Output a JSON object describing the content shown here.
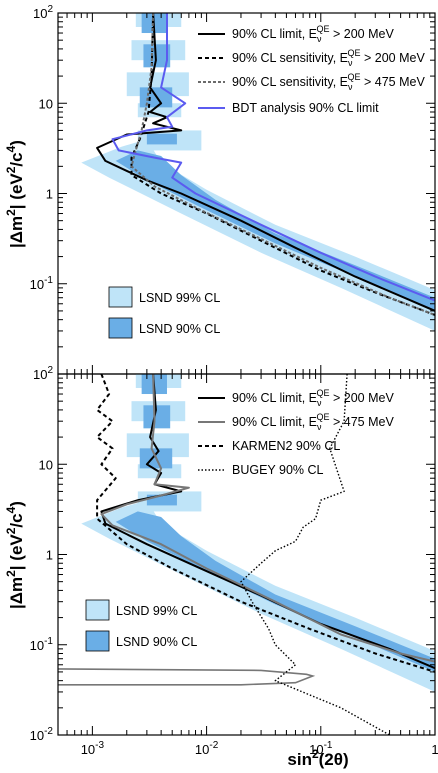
{
  "chart_data": [
    {
      "type": "line",
      "panel": "top",
      "xlabel": "sin²(2θ)",
      "ylabel": "|Δm²| (eV²/c⁴)",
      "xscale": "log",
      "yscale": "log",
      "xlim": [
        0.0005,
        1
      ],
      "ylim": [
        0.01,
        100
      ],
      "x_tick_labels": [
        "10⁻³",
        "10⁻²",
        "10⁻¹",
        "1"
      ],
      "y_tick_labels": [
        "10⁻²",
        "10⁻¹",
        "1",
        "10",
        "10²"
      ],
      "grid": false,
      "legend_position": "top-right",
      "series": [
        {
          "name": "90% CL limit, Eν^QE > 200 MeV",
          "color": "#000000",
          "style": "solid",
          "points": [
            [
              0.0034,
              100
            ],
            [
              0.0036,
              30
            ],
            [
              0.0032,
              15
            ],
            [
              0.004,
              10
            ],
            [
              0.0032,
              8
            ],
            [
              0.0045,
              7
            ],
            [
              0.0034,
              6
            ],
            [
              0.006,
              5
            ],
            [
              0.002,
              4.5
            ],
            [
              0.0011,
              3.2
            ],
            [
              0.0013,
              2.3
            ],
            [
              0.003,
              1.4
            ],
            [
              0.006,
              1.0
            ],
            [
              0.02,
              0.5
            ],
            [
              0.06,
              0.25
            ],
            [
              0.2,
              0.12
            ],
            [
              1,
              0.05
            ]
          ]
        },
        {
          "name": "90% CL sensitivity, Eν^QE > 200 MeV",
          "color": "#000000",
          "style": "dashed",
          "points": [
            [
              0.0034,
              100
            ],
            [
              0.0033,
              20
            ],
            [
              0.0031,
              8
            ],
            [
              0.0026,
              4
            ],
            [
              0.0022,
              2.5
            ],
            [
              0.0022,
              1.6
            ],
            [
              0.004,
              1.0
            ],
            [
              0.01,
              0.6
            ],
            [
              0.03,
              0.3
            ],
            [
              0.1,
              0.14
            ],
            [
              0.3,
              0.08
            ],
            [
              1,
              0.045
            ]
          ]
        },
        {
          "name": "90% CL sensitivity, Eν^QE > 475 MeV",
          "color": "#6b6b6b",
          "style": "dashed",
          "points": [
            [
              0.0034,
              100
            ],
            [
              0.0033,
              25
            ],
            [
              0.003,
              10
            ],
            [
              0.0027,
              5
            ],
            [
              0.0024,
              3
            ],
            [
              0.0022,
              2
            ],
            [
              0.0035,
              1.2
            ],
            [
              0.008,
              0.7
            ],
            [
              0.025,
              0.35
            ],
            [
              0.1,
              0.15
            ],
            [
              0.4,
              0.07
            ],
            [
              1,
              0.045
            ]
          ]
        },
        {
          "name": "BDT analysis 90% CL limit",
          "color": "#5b5bf0",
          "style": "solid",
          "points": [
            [
              0.0045,
              100
            ],
            [
              0.0045,
              30
            ],
            [
              0.004,
              15
            ],
            [
              0.0065,
              10
            ],
            [
              0.0045,
              7
            ],
            [
              0.005,
              5.5
            ],
            [
              0.003,
              5
            ],
            [
              0.0015,
              4
            ],
            [
              0.0017,
              3
            ],
            [
              0.0035,
              2.5
            ],
            [
              0.006,
              2.2
            ],
            [
              0.005,
              1.5
            ],
            [
              0.008,
              1.0
            ],
            [
              0.03,
              0.45
            ],
            [
              0.1,
              0.22
            ],
            [
              0.3,
              0.12
            ],
            [
              1,
              0.065
            ]
          ]
        }
      ],
      "regions": [
        {
          "name": "LSND 99% CL",
          "color": "#bfe4f8"
        },
        {
          "name": "LSND 90% CL",
          "color": "#6aaee6"
        }
      ]
    },
    {
      "type": "line",
      "panel": "bottom",
      "xlabel": "sin²(2θ)",
      "ylabel": "|Δm²| (eV²/c⁴)",
      "xscale": "log",
      "yscale": "log",
      "xlim": [
        0.0005,
        1
      ],
      "ylim": [
        0.01,
        100
      ],
      "x_tick_labels": [
        "10⁻³",
        "10⁻²",
        "10⁻¹",
        "1"
      ],
      "y_tick_labels": [
        "10⁻²",
        "10⁻¹",
        "1",
        "10",
        "10²"
      ],
      "grid": false,
      "legend_position": "top-right",
      "series": [
        {
          "name": "90% CL limit, Eν^QE > 200 MeV",
          "color": "#000000",
          "style": "solid",
          "points": [
            [
              0.0034,
              100
            ],
            [
              0.0036,
              40
            ],
            [
              0.0032,
              20
            ],
            [
              0.0038,
              14
            ],
            [
              0.003,
              10
            ],
            [
              0.004,
              8
            ],
            [
              0.0035,
              6
            ],
            [
              0.006,
              5
            ],
            [
              0.0025,
              4
            ],
            [
              0.0012,
              3
            ],
            [
              0.0013,
              2.2
            ],
            [
              0.003,
              1.3
            ],
            [
              0.007,
              0.8
            ],
            [
              0.03,
              0.35
            ],
            [
              0.1,
              0.17
            ],
            [
              0.4,
              0.09
            ],
            [
              1,
              0.055
            ]
          ]
        },
        {
          "name": "90% CL limit, Eν^QE > 475 MeV",
          "color": "#777777",
          "style": "solid",
          "points": [
            [
              0.0034,
              100
            ],
            [
              0.0035,
              30
            ],
            [
              0.0033,
              15
            ],
            [
              0.004,
              9
            ],
            [
              0.0035,
              6
            ],
            [
              0.007,
              5.5
            ],
            [
              0.004,
              4.5
            ],
            [
              0.002,
              3.6
            ],
            [
              0.0012,
              2.8
            ],
            [
              0.0015,
              2.1
            ],
            [
              0.004,
              1.3
            ],
            [
              0.01,
              0.7
            ],
            [
              0.04,
              0.3
            ],
            [
              0.15,
              0.13
            ],
            [
              0.5,
              0.08
            ],
            [
              1,
              0.065
            ]
          ]
        },
        {
          "name": "KARMEN2 90% CL",
          "color": "#000000",
          "style": "dashed",
          "points": [
            [
              0.0012,
              100
            ],
            [
              0.0014,
              60
            ],
            [
              0.0011,
              40
            ],
            [
              0.0015,
              30
            ],
            [
              0.0011,
              20
            ],
            [
              0.0015,
              15
            ],
            [
              0.0012,
              10
            ],
            [
              0.0016,
              7
            ],
            [
              0.0011,
              4
            ],
            [
              0.0011,
              2.5
            ],
            [
              0.002,
              1.3
            ],
            [
              0.005,
              0.7
            ],
            [
              0.02,
              0.3
            ],
            [
              0.08,
              0.15
            ],
            [
              0.3,
              0.08
            ],
            [
              1,
              0.05
            ]
          ]
        },
        {
          "name": "BUGEY 90% CL",
          "color": "#000000",
          "style": "dotted",
          "points": [
            [
              0.17,
              100
            ],
            [
              0.16,
              30
            ],
            [
              0.12,
              15
            ],
            [
              0.16,
              5
            ],
            [
              0.1,
              4
            ],
            [
              0.09,
              2.5
            ],
            [
              0.07,
              2
            ],
            [
              0.06,
              1.4
            ],
            [
              0.04,
              1.1
            ],
            [
              0.03,
              0.8
            ],
            [
              0.02,
              0.5
            ],
            [
              0.025,
              0.3
            ],
            [
              0.035,
              0.15
            ],
            [
              0.04,
              0.1
            ],
            [
              0.06,
              0.06
            ],
            [
              0.04,
              0.04
            ],
            [
              0.15,
              0.02
            ],
            [
              0.4,
              0.01
            ]
          ]
        }
      ],
      "regions": [
        {
          "name": "LSND 99% CL",
          "color": "#bfe4f8"
        },
        {
          "name": "LSND 90% CL",
          "color": "#6aaee6"
        }
      ]
    }
  ],
  "axes": {
    "xlabel_parts": {
      "base": "sin",
      "sup": "2",
      "rest": "(2θ)"
    },
    "ylabel_parts": {
      "a": "|Δm",
      "sup1": "2",
      "b": "| (eV",
      "sup2": "2",
      "c": "/c",
      "sup3": "4",
      "d": ")"
    },
    "x_ticks": [
      {
        "base": "10",
        "exp": "-3"
      },
      {
        "base": "10",
        "exp": "-2"
      },
      {
        "base": "10",
        "exp": "-1"
      },
      {
        "base": "1",
        "exp": ""
      }
    ],
    "y_ticks": [
      {
        "base": "10",
        "exp": "-2"
      },
      {
        "base": "10",
        "exp": "-1"
      },
      {
        "base": "1",
        "exp": ""
      },
      {
        "base": "10",
        "exp": ""
      },
      {
        "base": "10",
        "exp": "2"
      }
    ]
  },
  "legend_parts": {
    "limit200": {
      "pre": "90% CL limit, E",
      "sub": "ν",
      "sup": "QE",
      "post": " > 200 MeV"
    },
    "sens200": {
      "pre": "90% CL sensitivity, E",
      "sub": "ν",
      "sup": "QE",
      "post": " > 200 MeV"
    },
    "sens475": {
      "pre": "90% CL sensitivity, E",
      "sub": "ν",
      "sup": "QE",
      "post": " > 475 MeV"
    },
    "limit475": {
      "pre": "90% CL limit, E",
      "sub": "ν",
      "sup": "QE",
      "post": " > 475 MeV"
    },
    "bdt": "BDT analysis 90% CL limit",
    "karmen": "KARMEN2 90% CL",
    "bugey": "BUGEY 90% CL",
    "lsnd99": "LSND 99% CL",
    "lsnd90": "LSND 90% CL"
  },
  "colors": {
    "lsnd99": "#bfe4f8",
    "lsnd90": "#6aaee6",
    "bdt": "#5b5bf0",
    "gray": "#6b6b6b"
  }
}
